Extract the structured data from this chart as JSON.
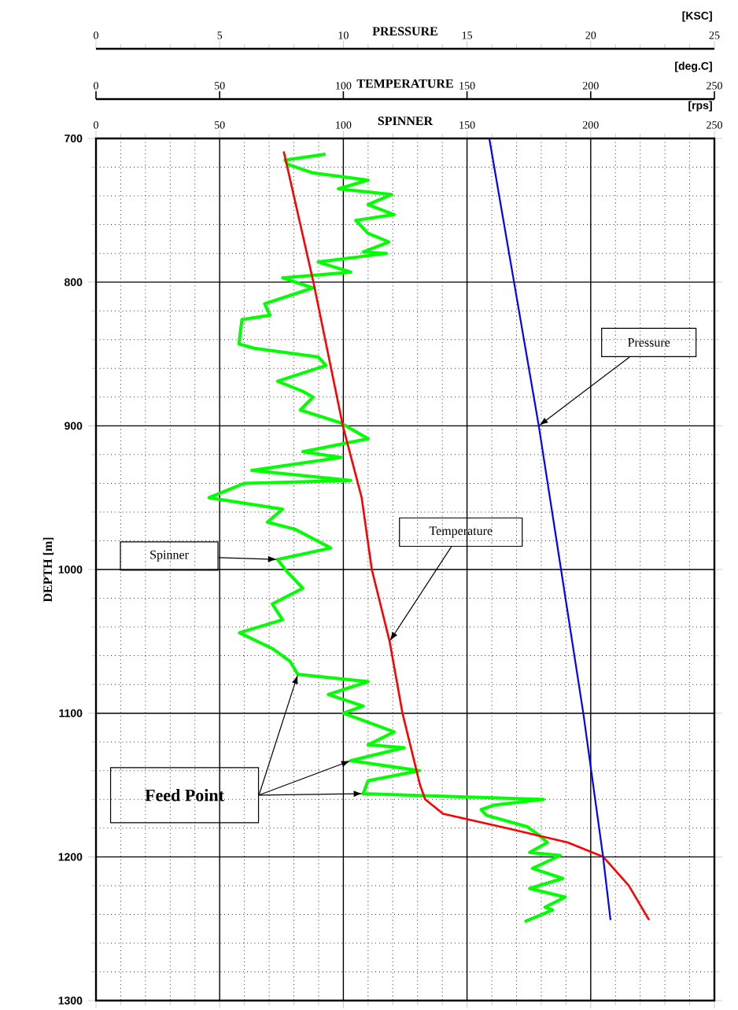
{
  "chart_data": {
    "type": "line",
    "xlabel": "PRESSURE",
    "x2label": "SPINNER",
    "ylabel": "DEPTH [m]",
    "xlim": [
      0,
      25
    ],
    "xticks": [
      0,
      5,
      10,
      15,
      20,
      25
    ],
    "x2lim": [
      0,
      250
    ],
    "x2ticks": [
      0,
      50,
      100,
      150,
      200,
      250
    ],
    "ylim": [
      1300,
      700
    ],
    "yticks": [
      700,
      800,
      900,
      1000,
      1100,
      1200,
      1300
    ],
    "grid": true,
    "marker": "none",
    "line_style": "solid",
    "series": [
      {
        "color": "#00ff00",
        "axis": "x2",
        "x": [
          92.8,
          76.4,
          77.5,
          87.7,
          101,
          110,
          98,
          119.5,
          110,
          120.5,
          105,
          110,
          118.4,
          108,
          117.4,
          89.8,
          103,
          75.4,
          87.7,
          68.2,
          70.3,
          59,
          57.8,
          64,
          89.8,
          93,
          73.4,
          83.6,
          87.7,
          82.6,
          99,
          110,
          83.6,
          99,
          63,
          103,
          60,
          45.7,
          75.4,
          69.3,
          80.5,
          94.9,
          73.4,
          77.5,
          83.6,
          71.3,
          75.4,
          58,
          71.3,
          78.5,
          81.6,
          110,
          93.9,
          108,
          100,
          120.5,
          110,
          124.6,
          103,
          130.7,
          110,
          108,
          180.9,
          160.9,
          155.7,
          157.8,
          174.3,
          178.4,
          182.5,
          175.3,
          187.7,
          176.4,
          188.7,
          175.3,
          189.7,
          181.5,
          184.6,
          173.3
        ],
        "values": [
          711,
          715,
          718,
          724,
          727,
          729,
          735,
          739,
          746,
          753,
          757,
          766,
          772,
          779,
          780,
          786,
          793,
          797,
          804,
          815,
          823,
          826,
          843,
          846,
          852,
          858,
          869,
          876,
          880,
          889,
          898,
          909,
          918,
          922,
          931,
          938,
          940,
          950,
          958,
          967,
          972,
          985,
          993,
          1002,
          1013,
          1024,
          1035,
          1044,
          1055,
          1064,
          1073,
          1078,
          1087,
          1095,
          1100,
          1113,
          1122,
          1124,
          1133,
          1140,
          1147,
          1156,
          1160,
          1164,
          1167,
          1171,
          1179,
          1184,
          1190,
          1197,
          1199,
          1208,
          1215,
          1222,
          1228,
          1235,
          1237,
          1245
        ]
      },
      {
        "color": "#ff0000",
        "axis": "x2",
        "x": [
          75.9,
          87.9,
          99.8,
          107.4,
          111.5,
          118.7,
          123.9,
          131,
          133.1,
          140.3,
          166,
          190.7,
          205.1,
          215.4,
          223.6
        ],
        "values": [
          709,
          800,
          900,
          950,
          1000,
          1050,
          1100,
          1150,
          1160,
          1170,
          1180,
          1190,
          1200,
          1220,
          1244
        ]
      },
      {
        "color": "#0000ff",
        "x": [
          15.9,
          16.9,
          17.9,
          18.8,
          19.7,
          20.5,
          20.8
        ],
        "values": [
          700,
          800,
          900,
          1000,
          1100,
          1200,
          1244
        ]
      }
    ],
    "annotations": [
      "[KSC]",
      "TEMPERATURE",
      "[deg.C]",
      "0",
      "50",
      "100",
      "150",
      "200",
      "250",
      "[rps]",
      {
        "text": "Pressure",
        "x": 17.9,
        "y": 900
      },
      {
        "text": "Temperature",
        "x": 11.87,
        "y": 1050
      },
      "Spinner",
      "Feed Point"
    ]
  }
}
